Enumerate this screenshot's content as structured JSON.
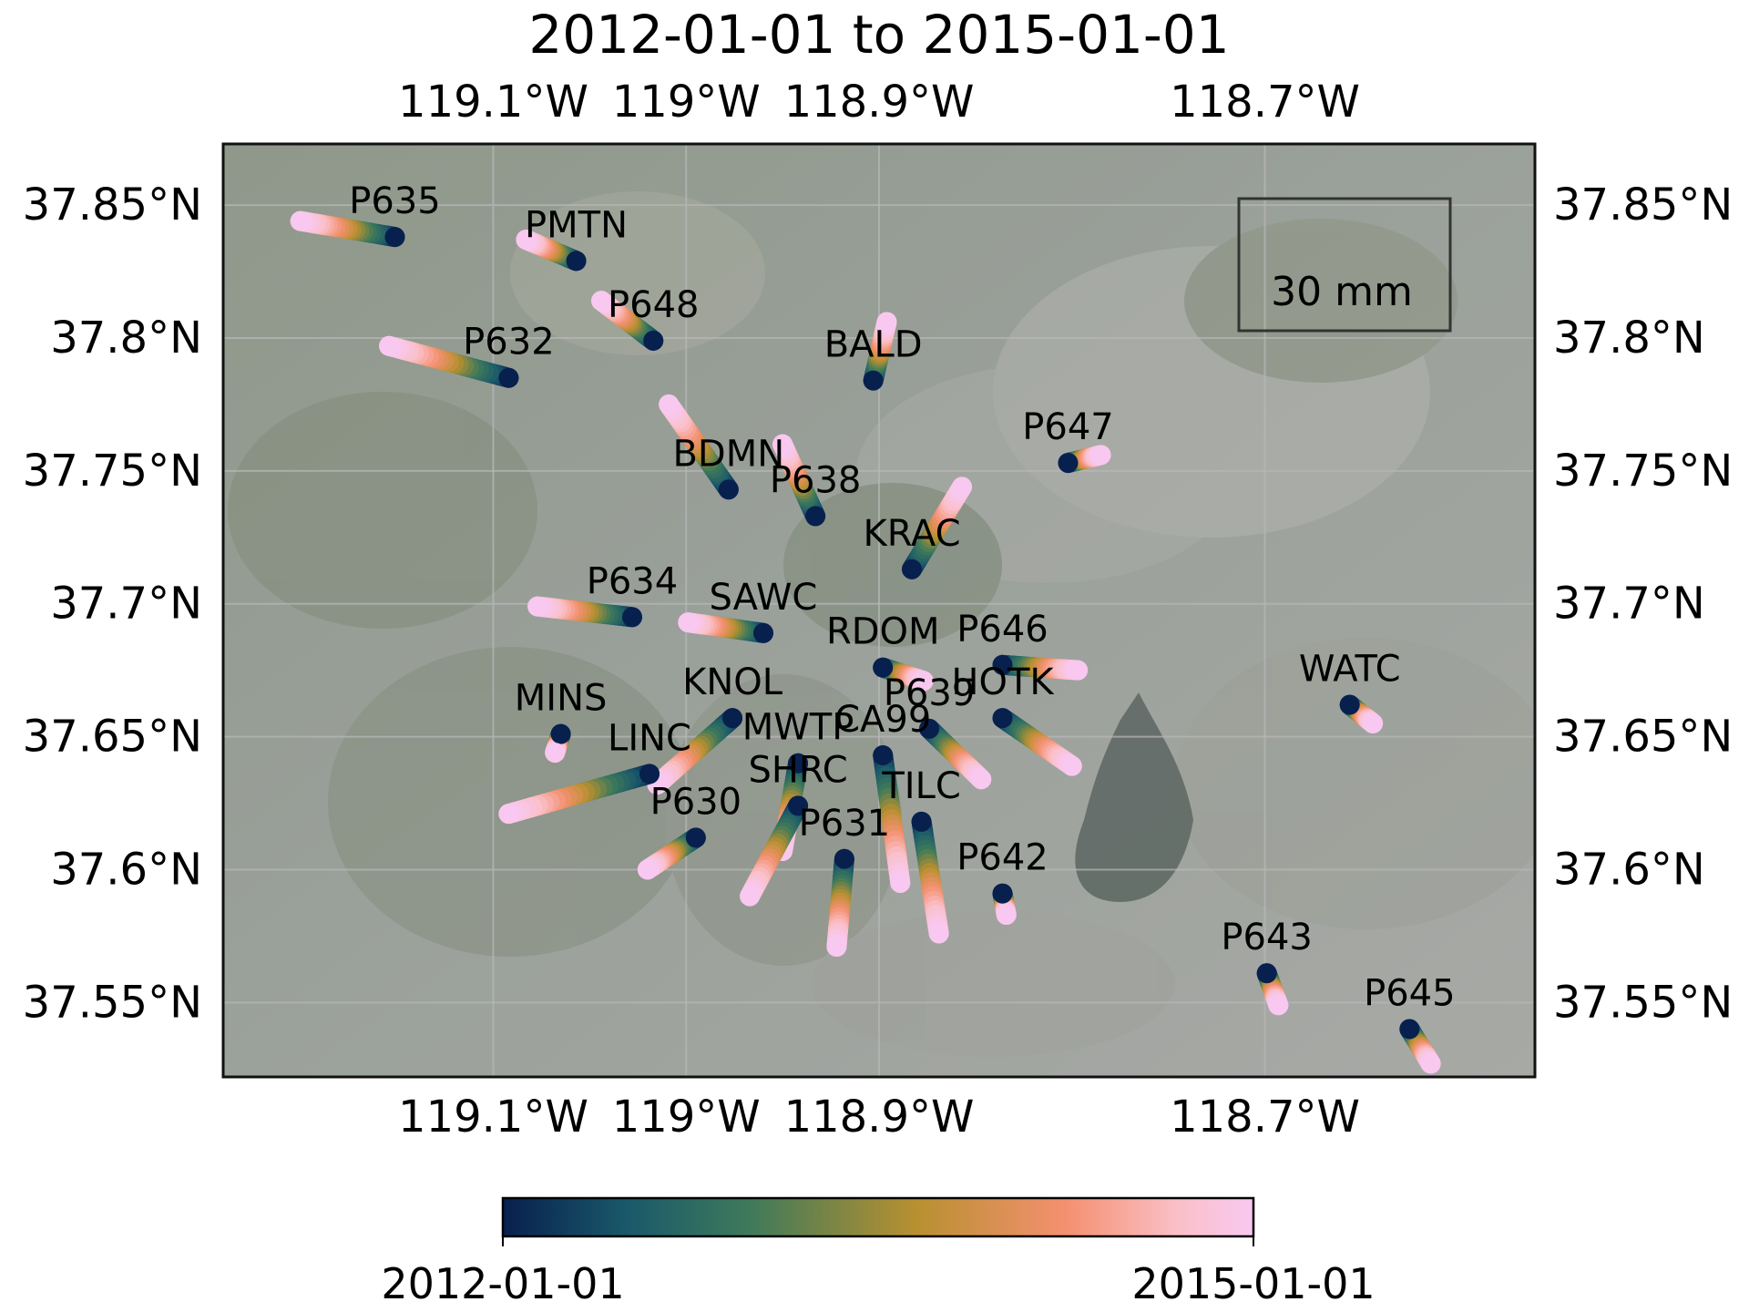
{
  "title": "2012-01-01 to 2015-01-01",
  "map": {
    "lon_range": [
      -119.24,
      -118.56
    ],
    "lat_range": [
      37.522,
      37.873
    ],
    "lon_ticks": [
      {
        "value": -119.1,
        "label": "119.1°W"
      },
      {
        "value": -119.0,
        "label": "119°W"
      },
      {
        "value": -118.9,
        "label": "118.9°W"
      },
      {
        "value": -118.7,
        "label": "118.7°W"
      }
    ],
    "lat_ticks": [
      {
        "value": 37.85,
        "label": "37.85°N"
      },
      {
        "value": 37.8,
        "label": "37.8°N"
      },
      {
        "value": 37.75,
        "label": "37.75°N"
      },
      {
        "value": 37.7,
        "label": "37.7°N"
      },
      {
        "value": 37.65,
        "label": "37.65°N"
      },
      {
        "value": 37.6,
        "label": "37.6°N"
      },
      {
        "value": 37.55,
        "label": "37.55°N"
      }
    ],
    "background": "satellite imagery (grey-green terrain with lake)"
  },
  "scale_legend": {
    "label": "30 mm"
  },
  "colorbar": {
    "start_label": "2012-01-01",
    "end_label": "2015-01-01",
    "colors": [
      "#08204e",
      "#1a5a6a",
      "#3f7a5a",
      "#b89030",
      "#f49070",
      "#fac0c8",
      "#f8c8f0"
    ]
  },
  "stations": [
    {
      "name": "P635",
      "lon": -119.151,
      "lat": 37.838,
      "end_lon": -119.2,
      "end_lat": 37.844
    },
    {
      "name": "PMTN",
      "lon": -119.057,
      "lat": 37.829,
      "end_lon": -119.083,
      "end_lat": 37.837
    },
    {
      "name": "P648",
      "lon": -119.017,
      "lat": 37.799,
      "end_lon": -119.044,
      "end_lat": 37.814
    },
    {
      "name": "P632",
      "lon": -119.092,
      "lat": 37.785,
      "end_lon": -119.154,
      "end_lat": 37.797
    },
    {
      "name": "BALD",
      "lon": -118.903,
      "lat": 37.784,
      "end_lon": -118.896,
      "end_lat": 37.806
    },
    {
      "name": "BDMN",
      "lon": -118.978,
      "lat": 37.743,
      "end_lon": -119.009,
      "end_lat": 37.775
    },
    {
      "name": "P638",
      "lon": -118.933,
      "lat": 37.733,
      "end_lon": -118.95,
      "end_lat": 37.76
    },
    {
      "name": "P647",
      "lon": -118.802,
      "lat": 37.753,
      "end_lon": -118.785,
      "end_lat": 37.756
    },
    {
      "name": "KRAC",
      "lon": -118.883,
      "lat": 37.713,
      "end_lon": -118.857,
      "end_lat": 37.744
    },
    {
      "name": "P634",
      "lon": -119.028,
      "lat": 37.695,
      "end_lon": -119.077,
      "end_lat": 37.699
    },
    {
      "name": "SAWC",
      "lon": -118.96,
      "lat": 37.689,
      "end_lon": -118.999,
      "end_lat": 37.693
    },
    {
      "name": "RDOM",
      "lon": -118.898,
      "lat": 37.676,
      "end_lon": -118.877,
      "end_lat": 37.671
    },
    {
      "name": "P646",
      "lon": -118.836,
      "lat": 37.677,
      "end_lon": -118.797,
      "end_lat": 37.675
    },
    {
      "name": "P639",
      "lon": -118.874,
      "lat": 37.653,
      "end_lon": -118.847,
      "end_lat": 37.634
    },
    {
      "name": "HOTK",
      "lon": -118.836,
      "lat": 37.657,
      "end_lon": -118.8,
      "end_lat": 37.639
    },
    {
      "name": "WATC",
      "lon": -118.656,
      "lat": 37.662,
      "end_lon": -118.644,
      "end_lat": 37.655
    },
    {
      "name": "MINS",
      "lon": -119.065,
      "lat": 37.651,
      "end_lon": -119.068,
      "end_lat": 37.644
    },
    {
      "name": "KNOL",
      "lon": -118.976,
      "lat": 37.657,
      "end_lon": -119.015,
      "end_lat": 37.632
    },
    {
      "name": "LINC",
      "lon": -119.019,
      "lat": 37.636,
      "end_lon": -119.092,
      "end_lat": 37.621
    },
    {
      "name": "MWTP",
      "lon": -118.942,
      "lat": 37.64,
      "end_lon": -118.95,
      "end_lat": 37.607
    },
    {
      "name": "CA99",
      "lon": -118.898,
      "lat": 37.643,
      "end_lon": -118.889,
      "end_lat": 37.595
    },
    {
      "name": "SHRC",
      "lon": -118.942,
      "lat": 37.624,
      "end_lon": -118.967,
      "end_lat": 37.59
    },
    {
      "name": "P630",
      "lon": -118.995,
      "lat": 37.612,
      "end_lon": -119.02,
      "end_lat": 37.6
    },
    {
      "name": "TILC",
      "lon": -118.878,
      "lat": 37.618,
      "end_lon": -118.869,
      "end_lat": 37.576
    },
    {
      "name": "P631",
      "lon": -118.918,
      "lat": 37.604,
      "end_lon": -118.922,
      "end_lat": 37.571
    },
    {
      "name": "P642",
      "lon": -118.836,
      "lat": 37.591,
      "end_lon": -118.834,
      "end_lat": 37.583
    },
    {
      "name": "P643",
      "lon": -118.699,
      "lat": 37.561,
      "end_lon": -118.693,
      "end_lat": 37.549
    },
    {
      "name": "P645",
      "lon": -118.625,
      "lat": 37.54,
      "end_lon": -118.614,
      "end_lat": 37.527
    }
  ]
}
